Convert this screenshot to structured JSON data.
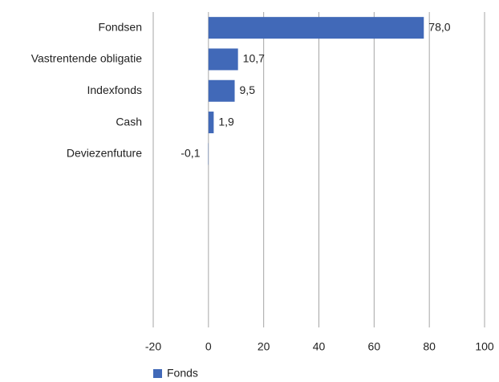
{
  "chart_data": {
    "type": "bar",
    "orientation": "horizontal",
    "categories": [
      "Fondsen",
      "Vastrentende obligatie",
      "Indexfonds",
      "Cash",
      "Deviezenfuture"
    ],
    "series": [
      {
        "name": "Fonds",
        "color": "#4169b8",
        "values": [
          78.0,
          10.7,
          9.5,
          1.9,
          -0.1
        ],
        "value_labels": [
          "78,0",
          "10,7",
          "9,5",
          "1,9",
          "-0,1"
        ]
      }
    ],
    "xlim": [
      -20,
      100
    ],
    "xticks": [
      -20,
      0,
      20,
      40,
      60,
      80,
      100
    ],
    "grid": true,
    "legend": "bottom-left"
  }
}
